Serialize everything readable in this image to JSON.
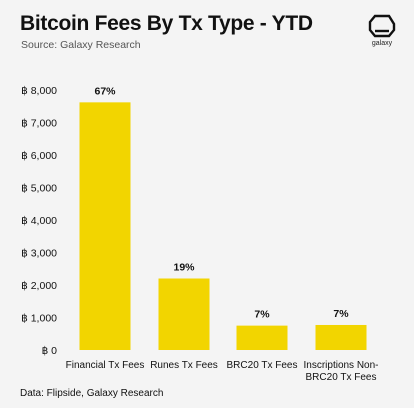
{
  "header": {
    "title": "Bitcoin Fees By Tx Type - YTD",
    "subtitle": "Source: Galaxy Research"
  },
  "logo": {
    "icon": "galaxy-logo-icon",
    "text": "galaxy"
  },
  "footer": {
    "source": "Data: Flipside, Galaxy Research"
  },
  "colors": {
    "bar": "#f2d500",
    "background": "#f4f4f4",
    "text": "#111111"
  },
  "chart_data": {
    "type": "bar",
    "title": "Bitcoin Fees By Tx Type - YTD",
    "categories": [
      "Financial Tx Fees",
      "Runes Tx Fees",
      "BRC20 Tx Fees",
      "Inscriptions Non-BRC20 Tx Fees"
    ],
    "category_lines": [
      [
        "Financial Tx Fees"
      ],
      [
        "Runes Tx Fees"
      ],
      [
        "BRC20 Tx Fees"
      ],
      [
        "Inscriptions Non-",
        "BRC20 Tx Fees"
      ]
    ],
    "values": [
      7620,
      2200,
      750,
      770
    ],
    "data_labels": [
      "67%",
      "19%",
      "7%",
      "7%"
    ],
    "ylim": [
      0,
      8000
    ],
    "yticks": [
      0,
      1000,
      2000,
      3000,
      4000,
      5000,
      6000,
      7000,
      8000
    ],
    "ytick_labels": [
      "฿ 0",
      "฿ 1,000",
      "฿ 2,000",
      "฿ 3,000",
      "฿ 4,000",
      "฿ 5,000",
      "฿ 6,000",
      "฿ 7,000",
      "฿ 8,000"
    ],
    "grid": false,
    "legend": "none"
  }
}
